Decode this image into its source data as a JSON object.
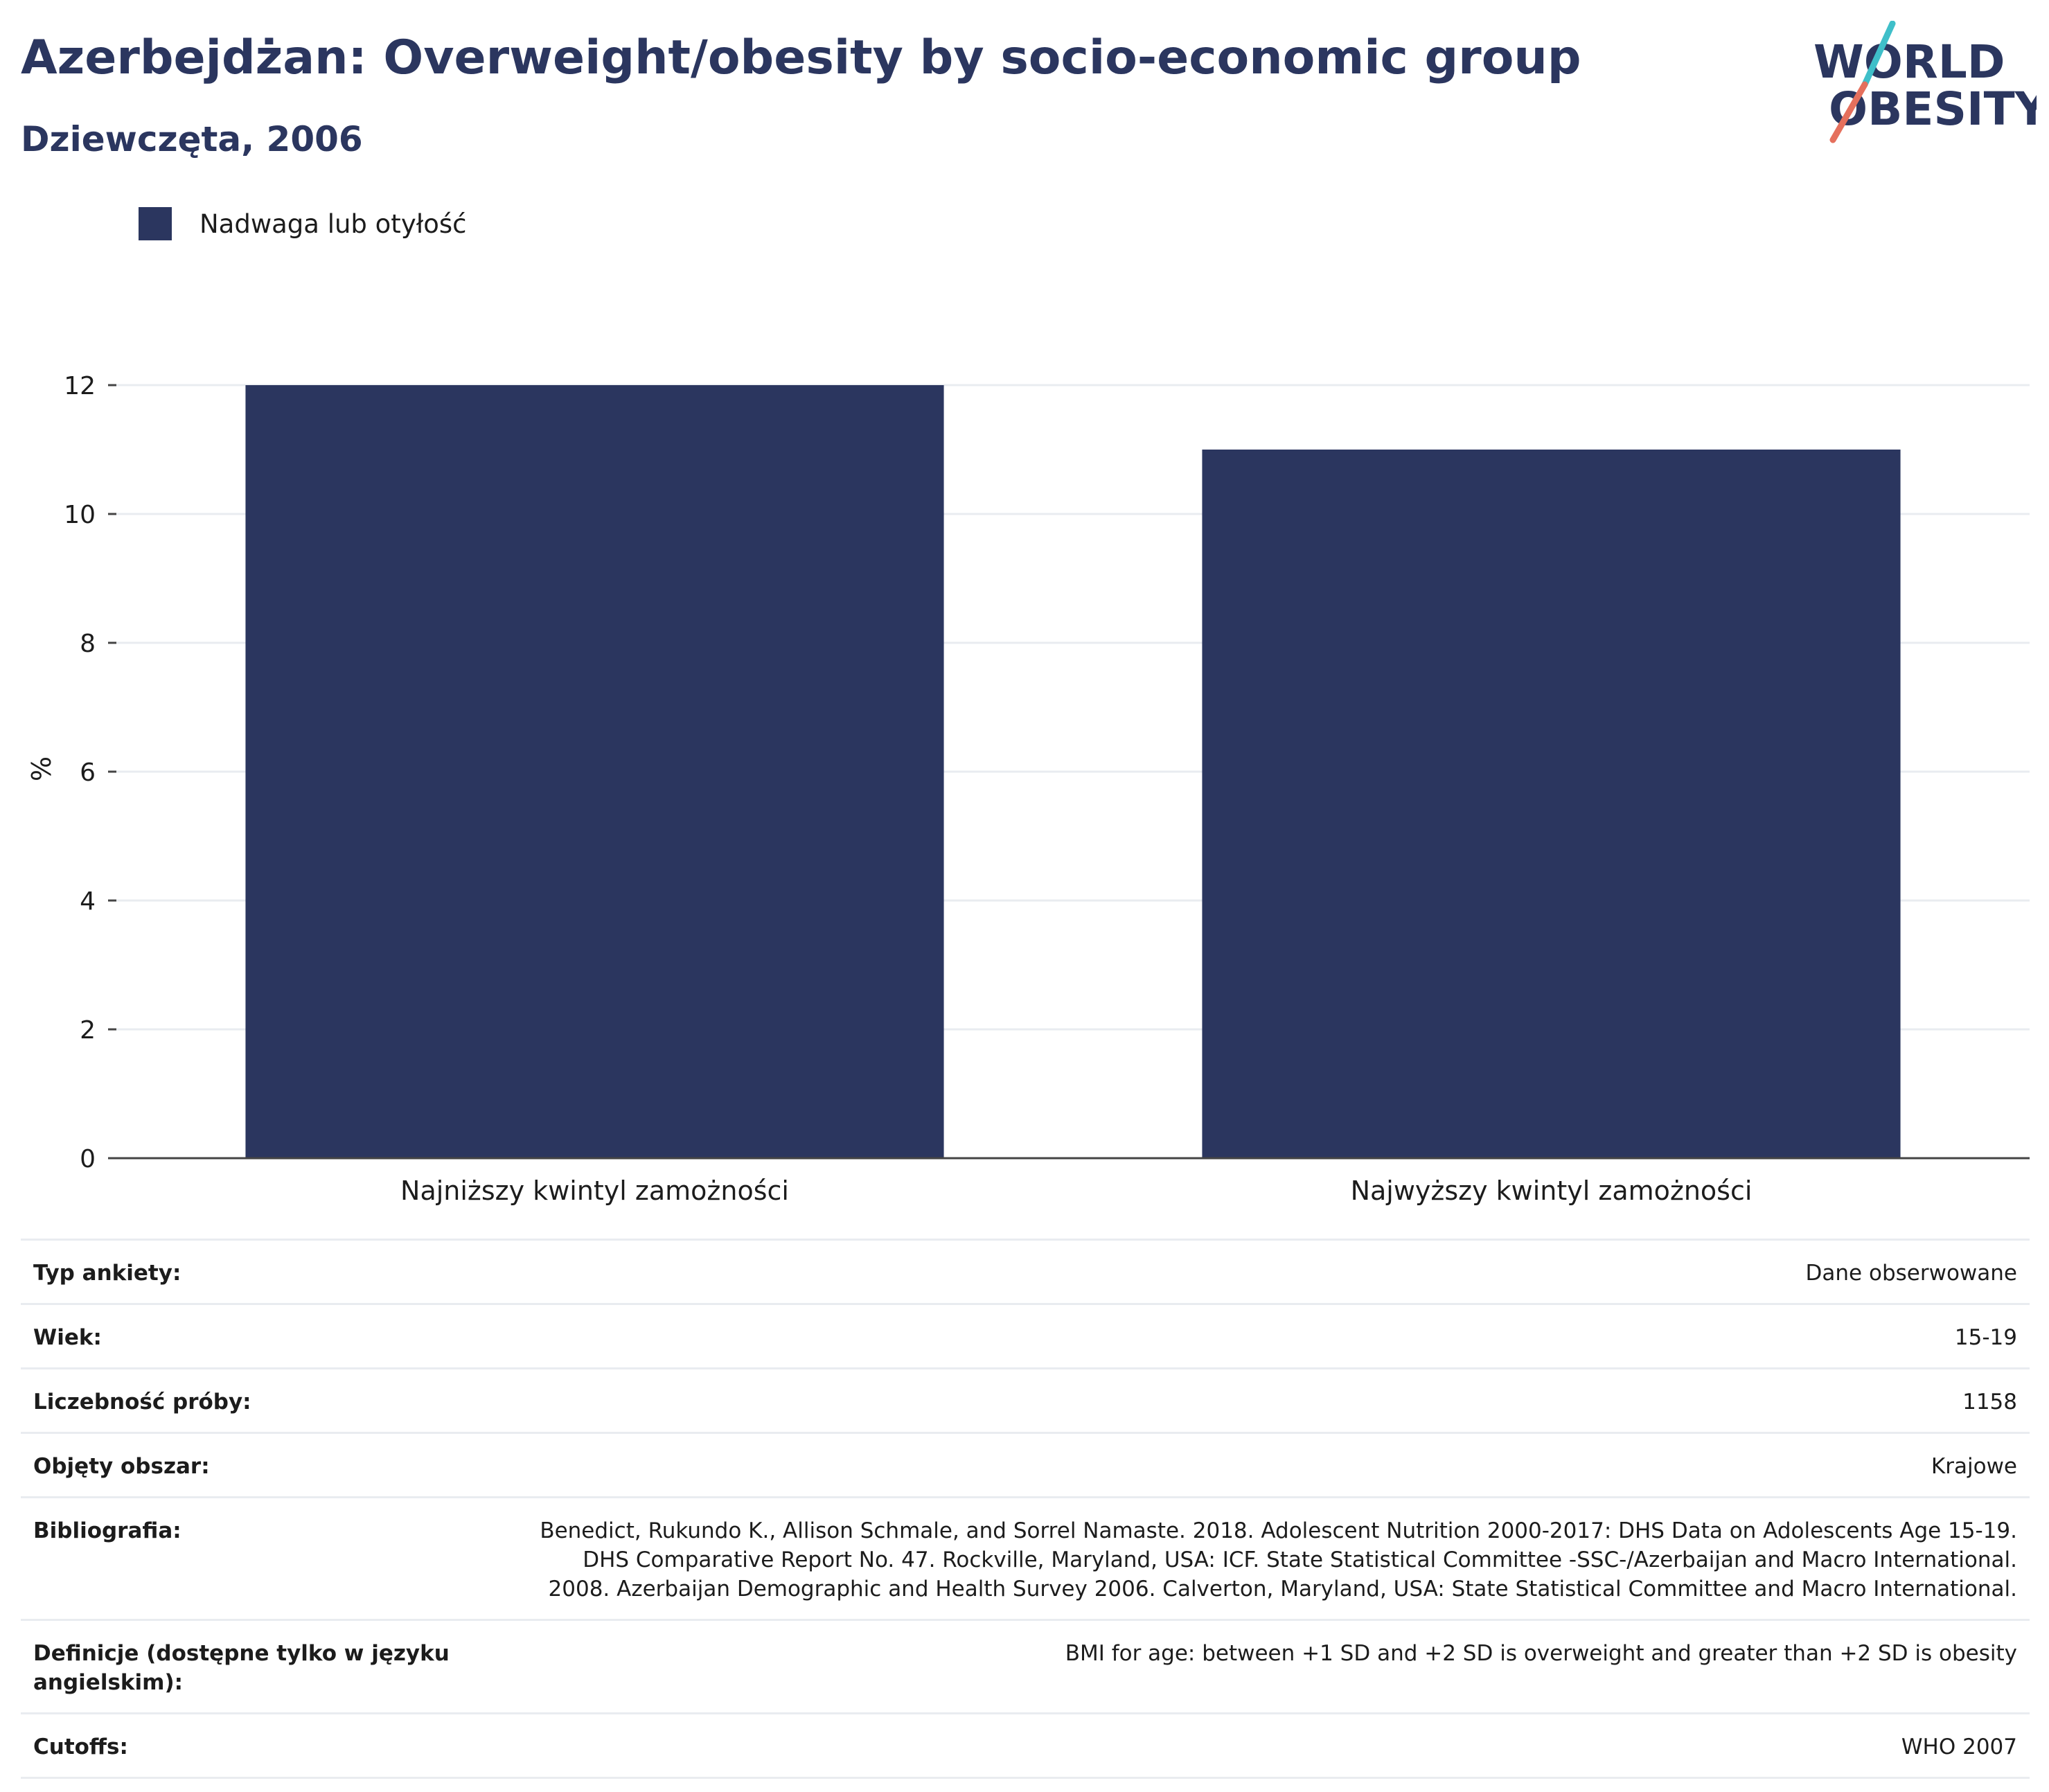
{
  "header": {
    "title": "Azerbejdżan: Overweight/obesity by socio-economic group",
    "subtitle": "Dziewczęta, 2006"
  },
  "logo": {
    "line1": "WORLD",
    "line2": "OBESITY",
    "colors": {
      "text": "#2b365f",
      "slash_top": "#3fbfc9",
      "slash_bottom": "#e5705d"
    }
  },
  "legend": {
    "label": "Nadwaga lub otyłość",
    "color": "#2b365f"
  },
  "chart_data": {
    "type": "bar",
    "categories": [
      "Najniższy kwintyl zamożności",
      "Najwyższy kwintyl zamożności"
    ],
    "series": [
      {
        "name": "Nadwaga lub otyłość",
        "values": [
          12.0,
          11.0
        ],
        "color": "#2b365f"
      }
    ],
    "xlabel": "",
    "ylabel": "%",
    "ylim": [
      0,
      12
    ],
    "yticks": [
      0,
      2,
      4,
      6,
      8,
      10,
      12
    ],
    "grid": true,
    "legend_position": "top-left"
  },
  "info": [
    {
      "label": "Typ ankiety:",
      "value": "Dane obserwowane"
    },
    {
      "label": "Wiek:",
      "value": "15-19"
    },
    {
      "label": "Liczebność próby:",
      "value": "1158"
    },
    {
      "label": "Objęty obszar:",
      "value": "Krajowe"
    },
    {
      "label": "Bibliografia:",
      "value": "Benedict, Rukundo K., Allison Schmale, and Sorrel Namaste. 2018. Adolescent Nutrition 2000-2017: DHS Data on Adolescents Age 15-19. DHS Comparative Report No. 47. Rockville, Maryland, USA: ICF. State Statistical Committee -SSC-/Azerbaijan and Macro International. 2008. Azerbaijan Demographic and Health Survey 2006. Calverton, Maryland, USA: State Statistical Committee and Macro International."
    },
    {
      "label": "Definicje (dostępne tylko w języku angielskim):",
      "value": "BMI for age: between +1 SD and +2 SD is overweight and greater than +2 SD is obesity"
    },
    {
      "label": "Cutoffs:",
      "value": "WHO 2007"
    }
  ]
}
